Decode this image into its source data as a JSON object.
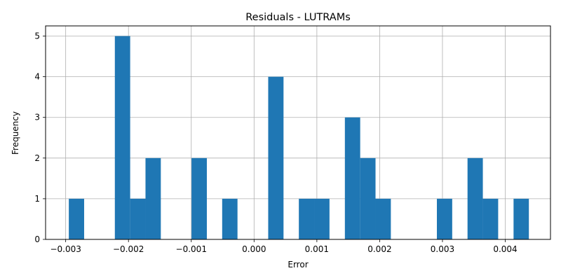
{
  "chart_data": {
    "type": "bar",
    "title": "Residuals - LUTRAMs",
    "xlabel": "Error",
    "ylabel": "Frequency",
    "xlim": [
      -0.00332,
      0.00472
    ],
    "ylim": [
      0,
      5.25
    ],
    "grid": true,
    "bar_color": "#1f77b4",
    "bin_width": 0.000244,
    "bins": [
      {
        "x0": -0.00295,
        "x1": -0.002706,
        "count": 1
      },
      {
        "x0": -0.002217,
        "x1": -0.001973,
        "count": 5
      },
      {
        "x0": -0.001973,
        "x1": -0.001729,
        "count": 1
      },
      {
        "x0": -0.001729,
        "x1": -0.001485,
        "count": 2
      },
      {
        "x0": -0.000996,
        "x1": -0.000752,
        "count": 2
      },
      {
        "x0": -0.000508,
        "x1": -0.000264,
        "count": 1
      },
      {
        "x0": 0.000225,
        "x1": 0.000469,
        "count": 4
      },
      {
        "x0": 0.000713,
        "x1": 0.000957,
        "count": 1
      },
      {
        "x0": 0.000957,
        "x1": 0.001201,
        "count": 1
      },
      {
        "x0": 0.001446,
        "x1": 0.00169,
        "count": 3
      },
      {
        "x0": 0.00169,
        "x1": 0.001934,
        "count": 2
      },
      {
        "x0": 0.001934,
        "x1": 0.002178,
        "count": 1
      },
      {
        "x0": 0.002911,
        "x1": 0.003155,
        "count": 1
      },
      {
        "x0": 0.003399,
        "x1": 0.003643,
        "count": 2
      },
      {
        "x0": 0.003643,
        "x1": 0.003887,
        "count": 1
      },
      {
        "x0": 0.004132,
        "x1": 0.004376,
        "count": 1
      }
    ],
    "x_ticks": [
      {
        "value": -0.003,
        "label": "−0.003"
      },
      {
        "value": -0.002,
        "label": "−0.002"
      },
      {
        "value": -0.001,
        "label": "−0.001"
      },
      {
        "value": 0.0,
        "label": "0.000"
      },
      {
        "value": 0.001,
        "label": "0.001"
      },
      {
        "value": 0.002,
        "label": "0.002"
      },
      {
        "value": 0.003,
        "label": "0.003"
      },
      {
        "value": 0.004,
        "label": "0.004"
      }
    ],
    "y_ticks": [
      {
        "value": 0,
        "label": "0"
      },
      {
        "value": 1,
        "label": "1"
      },
      {
        "value": 2,
        "label": "2"
      },
      {
        "value": 3,
        "label": "3"
      },
      {
        "value": 4,
        "label": "4"
      },
      {
        "value": 5,
        "label": "5"
      }
    ]
  }
}
